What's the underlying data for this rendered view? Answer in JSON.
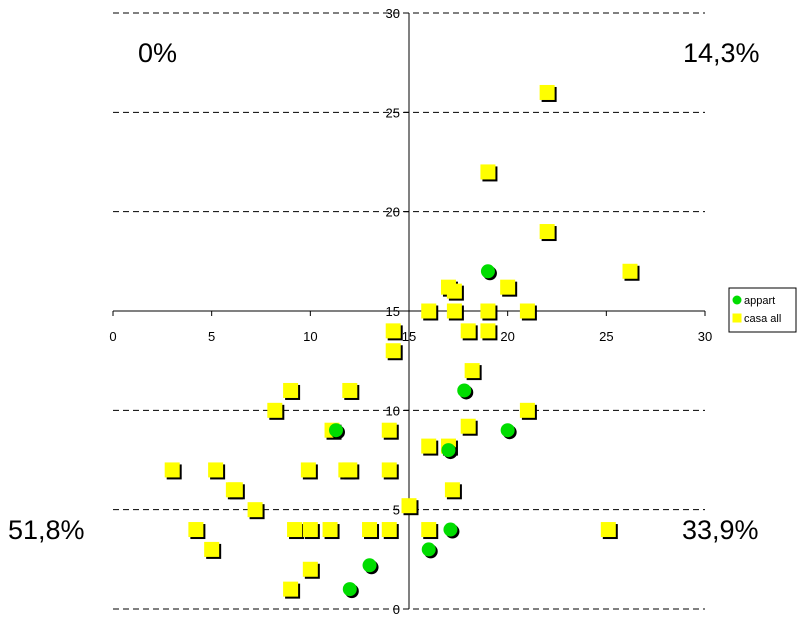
{
  "chart_data": {
    "type": "scatter",
    "title": "",
    "xlabel": "",
    "ylabel": "",
    "xlim": [
      0,
      30
    ],
    "ylim": [
      0,
      30
    ],
    "x_ticks": [
      "0",
      "5",
      "10",
      "15",
      "20",
      "25",
      "30"
    ],
    "y_ticks": [
      "0",
      "5",
      "10",
      "15",
      "20",
      "25",
      "30"
    ],
    "grid": "horizontal dashed",
    "legend_position": "right",
    "quadrant_labels": {
      "top_left": "0%",
      "top_right": "14,3%",
      "bottom_left": "51,8%",
      "bottom_right": "33,9%"
    },
    "series": [
      {
        "name": "appart",
        "color": "#00dd00",
        "marker": "circle",
        "points": [
          [
            19,
            17
          ],
          [
            17.8,
            11
          ],
          [
            11.3,
            9
          ],
          [
            20,
            9
          ],
          [
            17,
            8
          ],
          [
            17.1,
            4
          ],
          [
            16,
            3
          ],
          [
            13,
            2.2
          ],
          [
            12,
            1
          ]
        ]
      },
      {
        "name": "casa all",
        "color": "#ffff00",
        "marker": "square",
        "points": [
          [
            22,
            26
          ],
          [
            19,
            22
          ],
          [
            22,
            19
          ],
          [
            26.2,
            17
          ],
          [
            17,
            16.2
          ],
          [
            17.3,
            16
          ],
          [
            20,
            16.2
          ],
          [
            16,
            15
          ],
          [
            17.3,
            15
          ],
          [
            19,
            15
          ],
          [
            21,
            15
          ],
          [
            14.2,
            14
          ],
          [
            18,
            14
          ],
          [
            19,
            14
          ],
          [
            14.2,
            13
          ],
          [
            18.2,
            12
          ],
          [
            9,
            11
          ],
          [
            12,
            11
          ],
          [
            8.2,
            10
          ],
          [
            21,
            10
          ],
          [
            11.1,
            9
          ],
          [
            14,
            9
          ],
          [
            18,
            9.2
          ],
          [
            16,
            8.2
          ],
          [
            17,
            8.2
          ],
          [
            3,
            7
          ],
          [
            5.2,
            7
          ],
          [
            9.9,
            7
          ],
          [
            11.8,
            7
          ],
          [
            12,
            7
          ],
          [
            14,
            7
          ],
          [
            6.1,
            6
          ],
          [
            6.2,
            6
          ],
          [
            17.2,
            6
          ],
          [
            7.2,
            5
          ],
          [
            15,
            5.2
          ],
          [
            4.2,
            4
          ],
          [
            9.2,
            4
          ],
          [
            10,
            4
          ],
          [
            11,
            4
          ],
          [
            13,
            4
          ],
          [
            14,
            4
          ],
          [
            16,
            4
          ],
          [
            25.1,
            4
          ],
          [
            5,
            3
          ],
          [
            10,
            2
          ],
          [
            9,
            1
          ]
        ]
      }
    ]
  }
}
